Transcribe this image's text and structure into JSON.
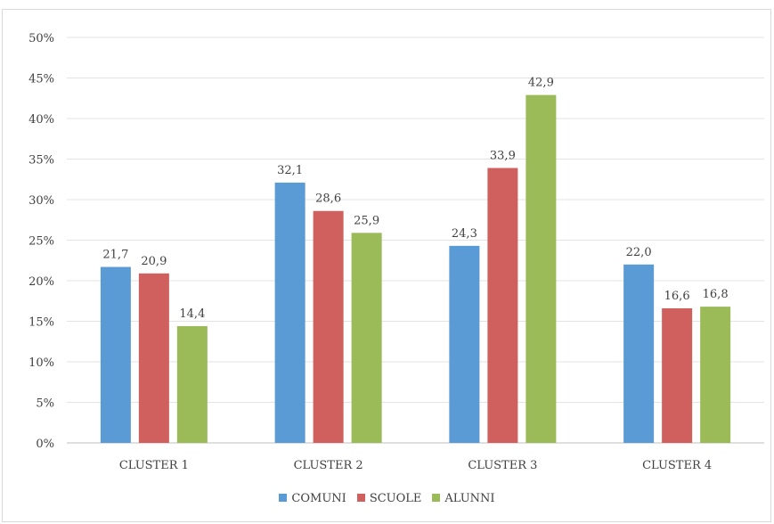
{
  "chart_data": {
    "type": "bar",
    "categories": [
      "CLUSTER 1",
      "CLUSTER 2",
      "CLUSTER 3",
      "CLUSTER 4"
    ],
    "series": [
      {
        "name": "COMUNI",
        "values": [
          21.7,
          32.1,
          24.3,
          22.0
        ],
        "labels": [
          "21,7",
          "32,1",
          "24,3",
          "22,0"
        ],
        "color": "#5b9bd5"
      },
      {
        "name": "SCUOLE",
        "values": [
          20.9,
          28.6,
          33.9,
          16.6
        ],
        "labels": [
          "20,9",
          "28,6",
          "33,9",
          "16,6"
        ],
        "color": "#d0605e"
      },
      {
        "name": "ALUNNI",
        "values": [
          14.4,
          25.9,
          42.9,
          16.8
        ],
        "labels": [
          "14,4",
          "25,9",
          "42,9",
          "16,8"
        ],
        "color": "#9bbb59"
      }
    ],
    "ylim": [
      0,
      50
    ],
    "yticks": [
      "0%",
      "5%",
      "10%",
      "15%",
      "20%",
      "25%",
      "30%",
      "35%",
      "40%",
      "45%",
      "50%"
    ],
    "title": "",
    "xlabel": "",
    "ylabel": "",
    "grid": true,
    "legend_position": "bottom"
  }
}
